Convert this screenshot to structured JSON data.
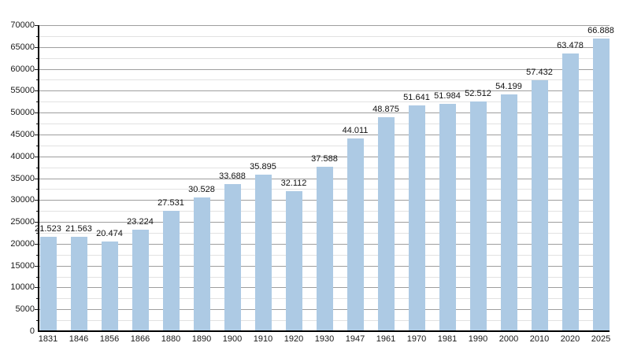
{
  "chart_data": {
    "type": "bar",
    "title": "",
    "xlabel": "",
    "ylabel": "",
    "categories": [
      "1831",
      "1846",
      "1856",
      "1866",
      "1880",
      "1890",
      "1900",
      "1910",
      "1920",
      "1930",
      "1947",
      "1961",
      "1970",
      "1981",
      "1990",
      "2000",
      "2010",
      "2020",
      "2025"
    ],
    "values": [
      21523,
      21563,
      20474,
      23224,
      27531,
      30528,
      33688,
      35895,
      32112,
      37588,
      44011,
      48875,
      51641,
      51984,
      52512,
      54199,
      57432,
      63478,
      66888
    ],
    "value_labels": [
      "21.523",
      "21.563",
      "20.474",
      "23.224",
      "27.531",
      "30.528",
      "33.688",
      "35.895",
      "32.112",
      "37.588",
      "44.011",
      "48.875",
      "51.641",
      "51.984",
      "52.512",
      "54.199",
      "57.432",
      "63.478",
      "66.888"
    ],
    "ylim": [
      0,
      70000
    ],
    "y_major_step": 5000,
    "y_minor_step": 2500,
    "y_tick_labels": [
      "0",
      "5000",
      "10000",
      "15000",
      "20000",
      "25000",
      "30000",
      "35000",
      "40000",
      "45000",
      "50000",
      "55000",
      "60000",
      "65000",
      "70000"
    ],
    "grid": true,
    "legend": false,
    "legend_position": "none",
    "colors": {
      "bar_fill": "#ADCAE4",
      "grid_major": "#9e9e9e",
      "grid_minor": "#e2e2e2",
      "axis": "#000000",
      "label_text": "#111111",
      "background": "#ffffff"
    }
  }
}
